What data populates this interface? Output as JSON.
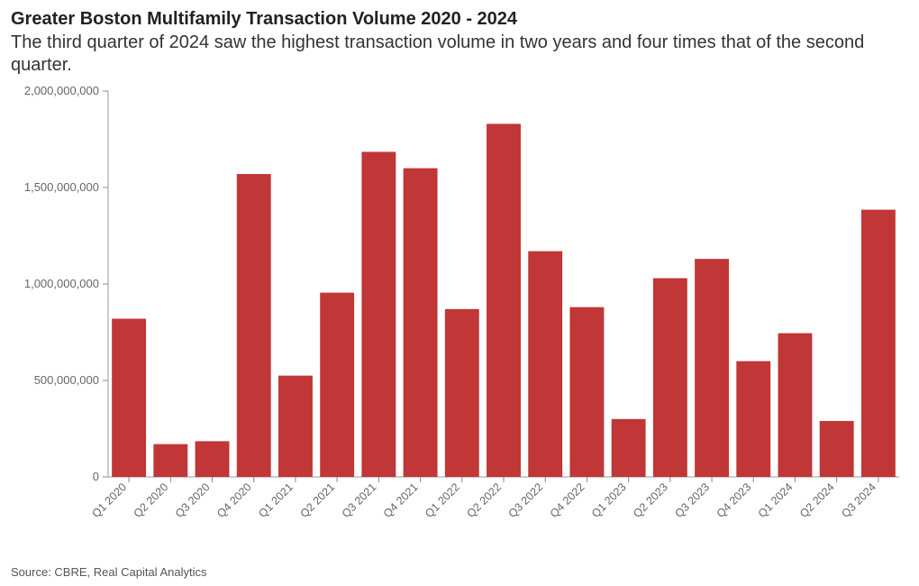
{
  "title": "Greater Boston Multifamily Transaction Volume 2020 - 2024",
  "subtitle": "The third quarter of 2024 saw the highest transaction volume in two years and four times that of the second quarter.",
  "source": "Source: CBRE, Real Capital Analytics",
  "chart": {
    "type": "bar",
    "categories": [
      "Q1 2020",
      "Q2 2020",
      "Q3 2020",
      "Q4 2020",
      "Q1 2021",
      "Q2 2021",
      "Q3 2021",
      "Q4 2021",
      "Q1 2022",
      "Q2 2022",
      "Q3 2022",
      "Q4 2022",
      "Q1 2023",
      "Q2 2023",
      "Q3 2023",
      "Q4 2023",
      "Q1 2024",
      "Q2 2024",
      "Q3 2024"
    ],
    "values": [
      820000000,
      170000000,
      185000000,
      1570000000,
      525000000,
      955000000,
      1685000000,
      1600000000,
      870000000,
      1830000000,
      1170000000,
      880000000,
      300000000,
      1030000000,
      1130000000,
      600000000,
      745000000,
      290000000,
      1385000000
    ],
    "bar_color": "#c13636",
    "background_color": "#ffffff",
    "axis_color": "#999999",
    "tick_color": "#888888",
    "label_color": "#666666",
    "ylim": [
      0,
      2000000000
    ],
    "ytick_step": 500000000,
    "ytick_labels": [
      "0",
      "500,000,000",
      "1,000,000,000",
      "1,500,000,000",
      "2,000,000,000"
    ],
    "bar_width_ratio": 0.82,
    "title_fontsize": 20,
    "subtitle_fontsize": 20,
    "axis_label_fontsize": 13,
    "xlabel_rotation_deg": -45
  }
}
